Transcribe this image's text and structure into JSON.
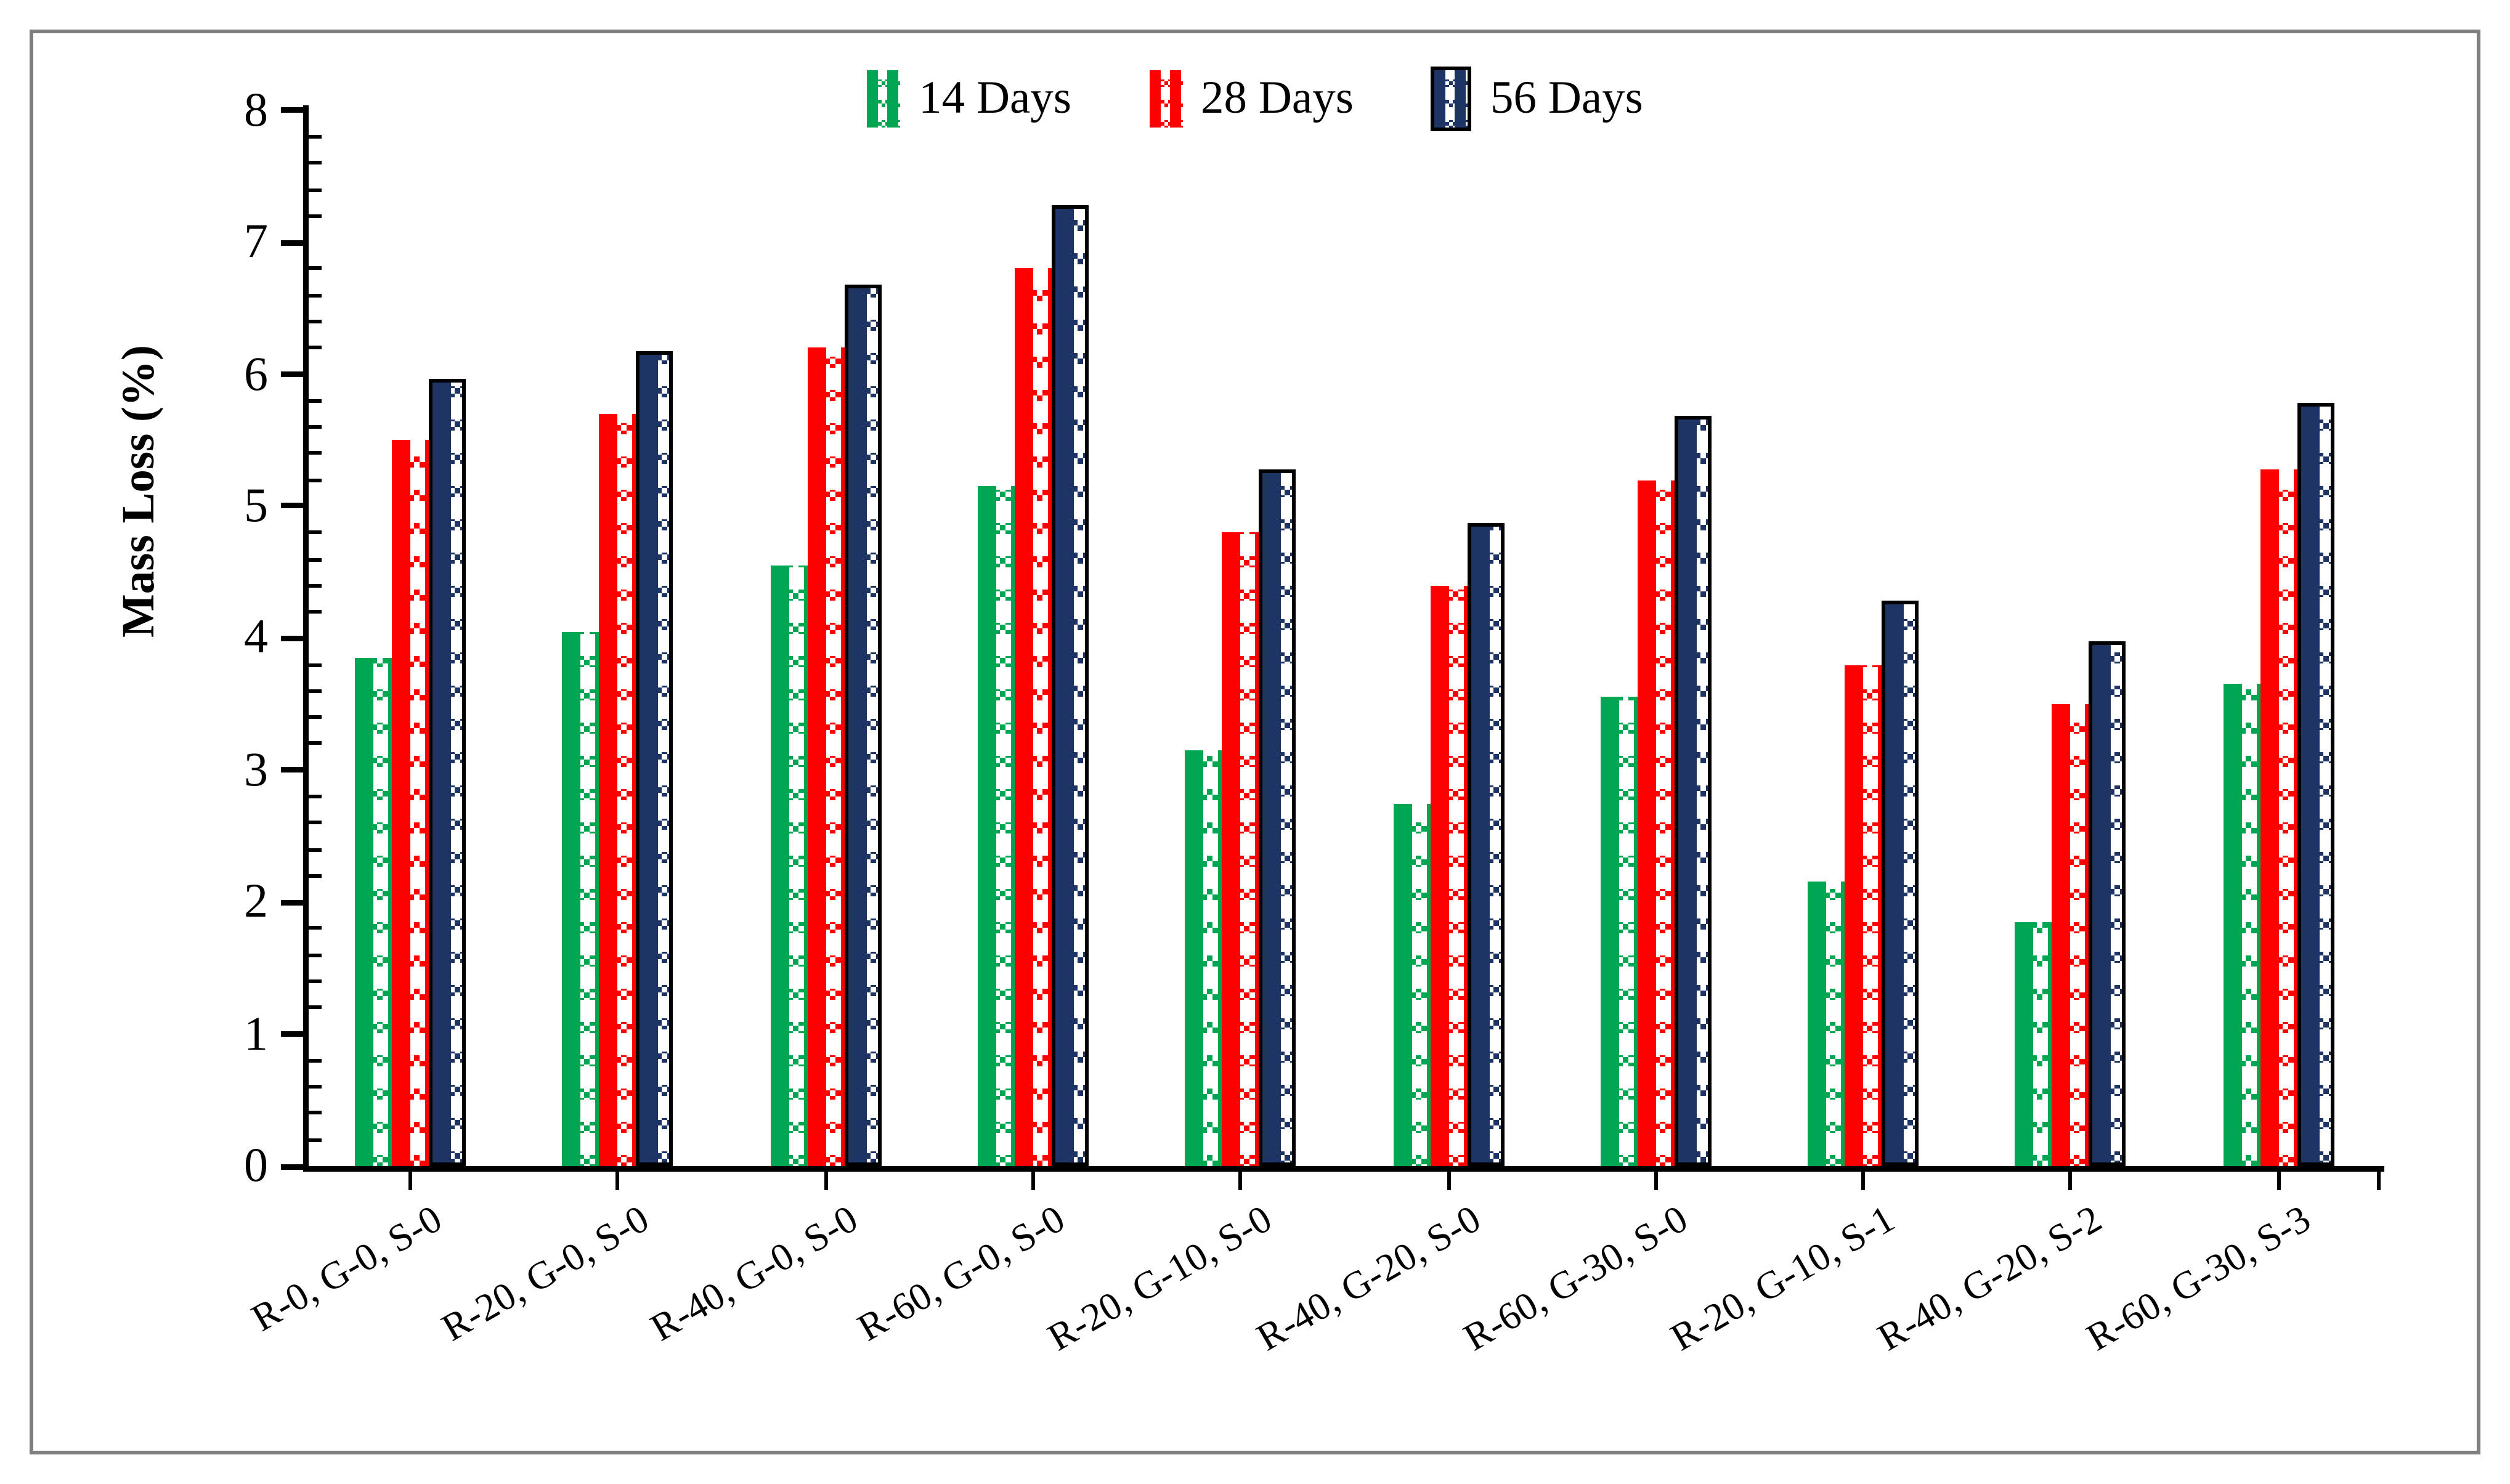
{
  "figure": {
    "frame_color": "#7f7f7f",
    "background": "#ffffff"
  },
  "y_axis": {
    "label": "Mass Loss (%)",
    "min": 0,
    "max": 8,
    "major_step": 1,
    "minor_step": 0.2,
    "tick_labels": [
      "0",
      "1",
      "2",
      "3",
      "4",
      "5",
      "6",
      "7",
      "8"
    ]
  },
  "x_axis": {
    "categories": [
      "R-0, G-0, S-0",
      "R-20, G-0, S-0",
      "R-40, G-0, S-0",
      "R-60, G-0, S-0",
      "R-20, G-10, S-0",
      "R-40, G-20, S-0",
      "R-60, G-30, S-0",
      "R-20, G-10, S-1",
      "R-40, G-20, S-2",
      "R-60, G-30, S-3"
    ]
  },
  "legend": {
    "position": "top",
    "items": [
      {
        "label": "14 Days",
        "color": "#00A651",
        "outlined": false
      },
      {
        "label": "28 Days",
        "color": "#FF0000",
        "outlined": false
      },
      {
        "label": "56 Days",
        "color": "#1E3465",
        "outlined": true
      }
    ]
  },
  "chart_data": {
    "type": "bar",
    "title": "",
    "xlabel": "",
    "ylabel": "Mass Loss (%)",
    "ylim": [
      0,
      8
    ],
    "grid": false,
    "legend_position": "top",
    "categories": [
      "R-0, G-0, S-0",
      "R-20, G-0, S-0",
      "R-40, G-0, S-0",
      "R-60, G-0, S-0",
      "R-20, G-10, S-0",
      "R-40, G-20, S-0",
      "R-60, G-30, S-0",
      "R-20, G-10, S-1",
      "R-40, G-20, S-2",
      "R-60, G-30, S-3"
    ],
    "series": [
      {
        "name": "14 Days",
        "color": "#00A651",
        "values": [
          3.85,
          4.05,
          4.55,
          5.15,
          3.15,
          2.75,
          3.55,
          2.15,
          1.85,
          3.65
        ]
      },
      {
        "name": "28 Days",
        "color": "#FF0000",
        "values": [
          5.5,
          5.7,
          6.2,
          6.8,
          4.8,
          4.4,
          5.2,
          3.8,
          3.5,
          5.28
        ]
      },
      {
        "name": "56 Days",
        "color": "#1E3465",
        "values": [
          5.97,
          6.17,
          6.68,
          7.28,
          5.28,
          4.88,
          5.68,
          4.28,
          3.97,
          5.78
        ]
      }
    ]
  }
}
